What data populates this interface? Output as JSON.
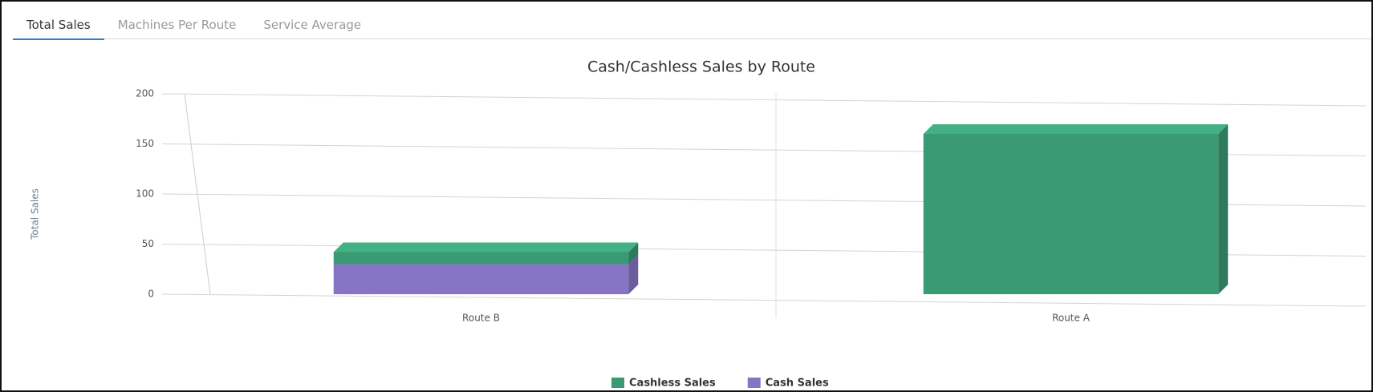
{
  "tabs": [
    "Total Sales",
    "Machines Per Route",
    "Service Average"
  ],
  "chart_data": {
    "type": "bar",
    "stacked": true,
    "title": "Cash/Cashless Sales by Route",
    "y_label": "Total Sales",
    "categories": [
      "Route B",
      "Route A"
    ],
    "series": [
      {
        "name": "Cashless Sales",
        "color": "#3a9a73",
        "values": [
          12,
          160
        ]
      },
      {
        "name": "Cash Sales",
        "color": "#8674c4",
        "values": [
          30,
          0
        ]
      }
    ],
    "ylim": [
      0,
      200
    ],
    "yticks": [
      0,
      50,
      100,
      150,
      200
    ],
    "grid": true
  }
}
